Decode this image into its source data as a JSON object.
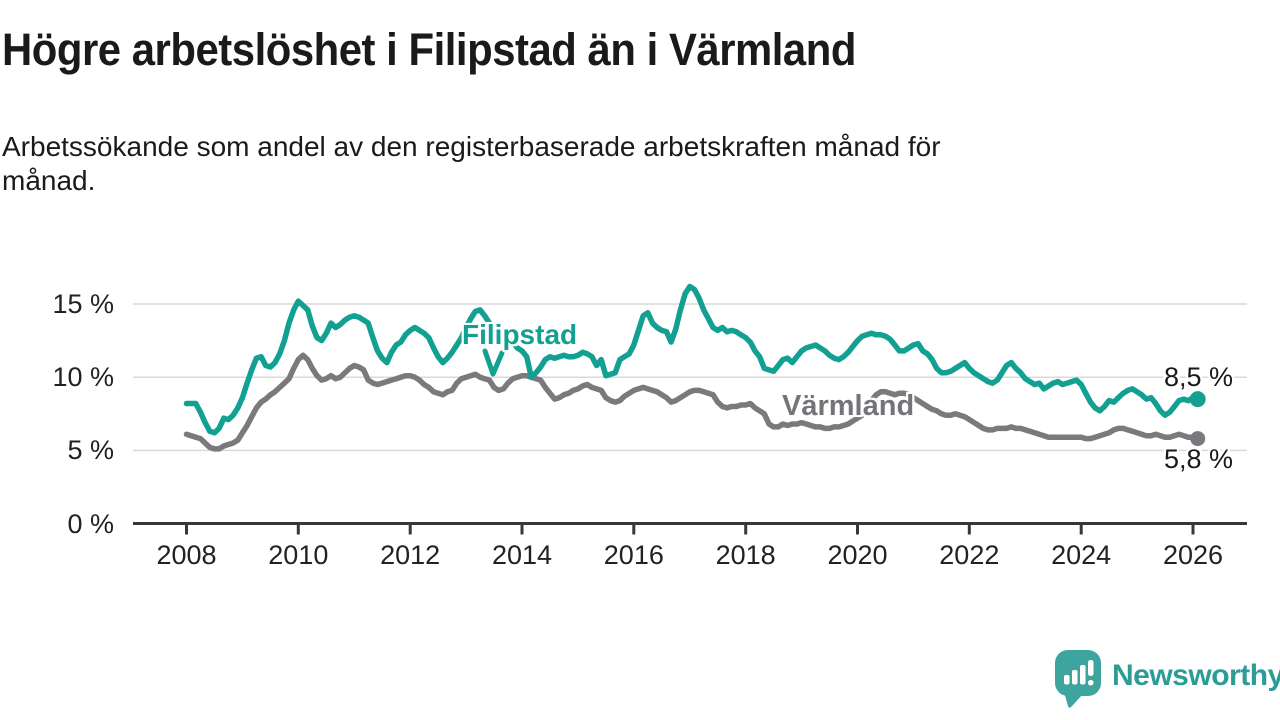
{
  "header": {
    "title": "Högre arbetslöshet i Filipstad än i Värmland",
    "subtitle_lines": [
      "Arbetssökande som andel av den registerbaserade arbetskraften månad för",
      "månad."
    ]
  },
  "chart": {
    "y_ticks": [
      "0 %",
      "5 %",
      "10 %",
      "15 %"
    ],
    "x_ticks": [
      "2008",
      "2010",
      "2012",
      "2014",
      "2016",
      "2018",
      "2020",
      "2022",
      "2024",
      "2026"
    ],
    "series_labels": {
      "filipstad": "Filipstad",
      "varmland": "Värmland"
    },
    "end_labels": {
      "filipstad": "8,5 %",
      "varmland": "5,8 %"
    }
  },
  "chart_data": {
    "type": "line",
    "title": "Högre arbetslöshet i Filipstad än i Värmland",
    "subtitle": "Arbetssökande som andel av den registerbaserade arbetskraften månad för månad.",
    "unit": "percent",
    "frequency": "monthly",
    "x_start": "2008-01",
    "x_end": "2026-02",
    "ylim": [
      0,
      16.5
    ],
    "y_tick_values": [
      0,
      5,
      10,
      15
    ],
    "x_tick_years": [
      2008,
      2010,
      2012,
      2014,
      2016,
      2018,
      2020,
      2022,
      2024,
      2026
    ],
    "grid": "horizontal",
    "legend_position": "inline-labels",
    "series": [
      {
        "name": "Filipstad",
        "color": "#12a092",
        "last_value_label": "8,5 %",
        "values": [
          8.2,
          8.2,
          8.2,
          7.6,
          6.9,
          6.3,
          6.2,
          6.5,
          7.2,
          7.1,
          7.4,
          7.9,
          8.6,
          9.6,
          10.5,
          11.3,
          11.4,
          10.8,
          10.7,
          11.0,
          11.6,
          12.5,
          13.7,
          14.6,
          15.2,
          14.9,
          14.6,
          13.5,
          12.7,
          12.5,
          13.0,
          13.7,
          13.4,
          13.6,
          13.9,
          14.1,
          14.2,
          14.1,
          13.9,
          13.7,
          12.7,
          11.8,
          11.3,
          11.0,
          11.7,
          12.2,
          12.4,
          12.9,
          13.2,
          13.4,
          13.2,
          13.0,
          12.7,
          12.0,
          11.4,
          11.0,
          11.3,
          11.7,
          12.2,
          12.7,
          13.4,
          14.0,
          14.5,
          14.6,
          14.2,
          13.7,
          13.3,
          13.0,
          12.8,
          12.6,
          12.4,
          12.0,
          11.8,
          11.4,
          10.0,
          10.3,
          10.7,
          11.2,
          11.4,
          11.3,
          11.4,
          11.5,
          11.4,
          11.4,
          11.5,
          11.7,
          11.6,
          11.4,
          10.8,
          11.2,
          10.1,
          10.2,
          10.3,
          11.2,
          11.4,
          11.6,
          12.2,
          13.2,
          14.2,
          14.4,
          13.7,
          13.4,
          13.2,
          13.1,
          12.4,
          13.3,
          14.6,
          15.7,
          16.2,
          16.0,
          15.4,
          14.6,
          14.0,
          13.4,
          13.2,
          13.4,
          13.1,
          13.2,
          13.1,
          12.9,
          12.7,
          12.4,
          11.8,
          11.4,
          10.6,
          10.5,
          10.4,
          10.8,
          11.2,
          11.3,
          11.0,
          11.4,
          11.8,
          12.0,
          12.1,
          12.2,
          12.0,
          11.8,
          11.5,
          11.3,
          11.2,
          11.4,
          11.7,
          12.1,
          12.5,
          12.8,
          12.9,
          13.0,
          12.9,
          12.9,
          12.8,
          12.6,
          12.2,
          11.8,
          11.8,
          12.0,
          12.2,
          12.3,
          11.8,
          11.6,
          11.2,
          10.6,
          10.3,
          10.3,
          10.4,
          10.6,
          10.8,
          11.0,
          10.6,
          10.3,
          10.1,
          9.9,
          9.7,
          9.6,
          9.8,
          10.3,
          10.8,
          11.0,
          10.6,
          10.3,
          9.9,
          9.7,
          9.5,
          9.6,
          9.2,
          9.4,
          9.6,
          9.7,
          9.5,
          9.6,
          9.7,
          9.8,
          9.5,
          8.9,
          8.3,
          7.9,
          7.7,
          8.0,
          8.4,
          8.3,
          8.6,
          8.9,
          9.1,
          9.2,
          9.0,
          8.8,
          8.5,
          8.6,
          8.2,
          7.7,
          7.4,
          7.6,
          8.0,
          8.4,
          8.5,
          8.4,
          8.6,
          8.5
        ]
      },
      {
        "name": "Värmland",
        "color": "#7a7a7e",
        "last_value_label": "5,8 %",
        "values": [
          6.1,
          6.0,
          5.9,
          5.8,
          5.5,
          5.2,
          5.1,
          5.1,
          5.3,
          5.4,
          5.5,
          5.7,
          6.2,
          6.7,
          7.3,
          7.9,
          8.3,
          8.5,
          8.8,
          9.0,
          9.3,
          9.6,
          9.9,
          10.6,
          11.2,
          11.5,
          11.2,
          10.6,
          10.1,
          9.8,
          9.9,
          10.1,
          9.9,
          10.0,
          10.3,
          10.6,
          10.8,
          10.7,
          10.5,
          9.8,
          9.6,
          9.5,
          9.6,
          9.7,
          9.8,
          9.9,
          10.0,
          10.1,
          10.1,
          10.0,
          9.8,
          9.5,
          9.3,
          9.0,
          8.9,
          8.8,
          9.0,
          9.1,
          9.6,
          9.9,
          10.0,
          10.1,
          10.2,
          10.0,
          9.9,
          9.8,
          9.3,
          9.1,
          9.2,
          9.6,
          9.9,
          10.0,
          10.1,
          10.1,
          10.0,
          9.9,
          9.8,
          9.3,
          8.9,
          8.5,
          8.6,
          8.8,
          8.9,
          9.1,
          9.2,
          9.4,
          9.5,
          9.3,
          9.2,
          9.1,
          8.6,
          8.4,
          8.3,
          8.4,
          8.7,
          8.9,
          9.1,
          9.2,
          9.3,
          9.2,
          9.1,
          9.0,
          8.8,
          8.6,
          8.3,
          8.4,
          8.6,
          8.8,
          9.0,
          9.1,
          9.1,
          9.0,
          8.9,
          8.8,
          8.3,
          8.0,
          7.9,
          8.0,
          8.0,
          8.1,
          8.1,
          8.2,
          7.9,
          7.7,
          7.5,
          6.8,
          6.6,
          6.6,
          6.8,
          6.7,
          6.8,
          6.8,
          6.9,
          6.8,
          6.7,
          6.6,
          6.6,
          6.5,
          6.5,
          6.6,
          6.6,
          6.7,
          6.8,
          7.0,
          7.2,
          7.4,
          7.8,
          8.4,
          8.8,
          9.0,
          9.0,
          8.9,
          8.8,
          8.9,
          8.9,
          8.8,
          8.6,
          8.4,
          8.2,
          8.0,
          7.8,
          7.7,
          7.5,
          7.4,
          7.4,
          7.5,
          7.4,
          7.3,
          7.1,
          6.9,
          6.7,
          6.5,
          6.4,
          6.4,
          6.5,
          6.5,
          6.5,
          6.6,
          6.5,
          6.5,
          6.4,
          6.3,
          6.2,
          6.1,
          6.0,
          5.9,
          5.9,
          5.9,
          5.9,
          5.9,
          5.9,
          5.9,
          5.9,
          5.8,
          5.8,
          5.9,
          6.0,
          6.1,
          6.2,
          6.4,
          6.5,
          6.5,
          6.4,
          6.3,
          6.2,
          6.1,
          6.0,
          6.0,
          6.1,
          6.0,
          5.9,
          5.9,
          6.0,
          6.1,
          6.0,
          5.9,
          5.9,
          5.8
        ]
      }
    ]
  },
  "footer": {
    "brand": "Newsworthy"
  },
  "colors": {
    "accent": "#12a092",
    "gray_series": "#7a7a7e",
    "grid": "#d9d9d9",
    "axis": "#37373a",
    "text": "#1a1a1a",
    "logo": "#3da49e",
    "wordmark": "#2c9d96"
  }
}
